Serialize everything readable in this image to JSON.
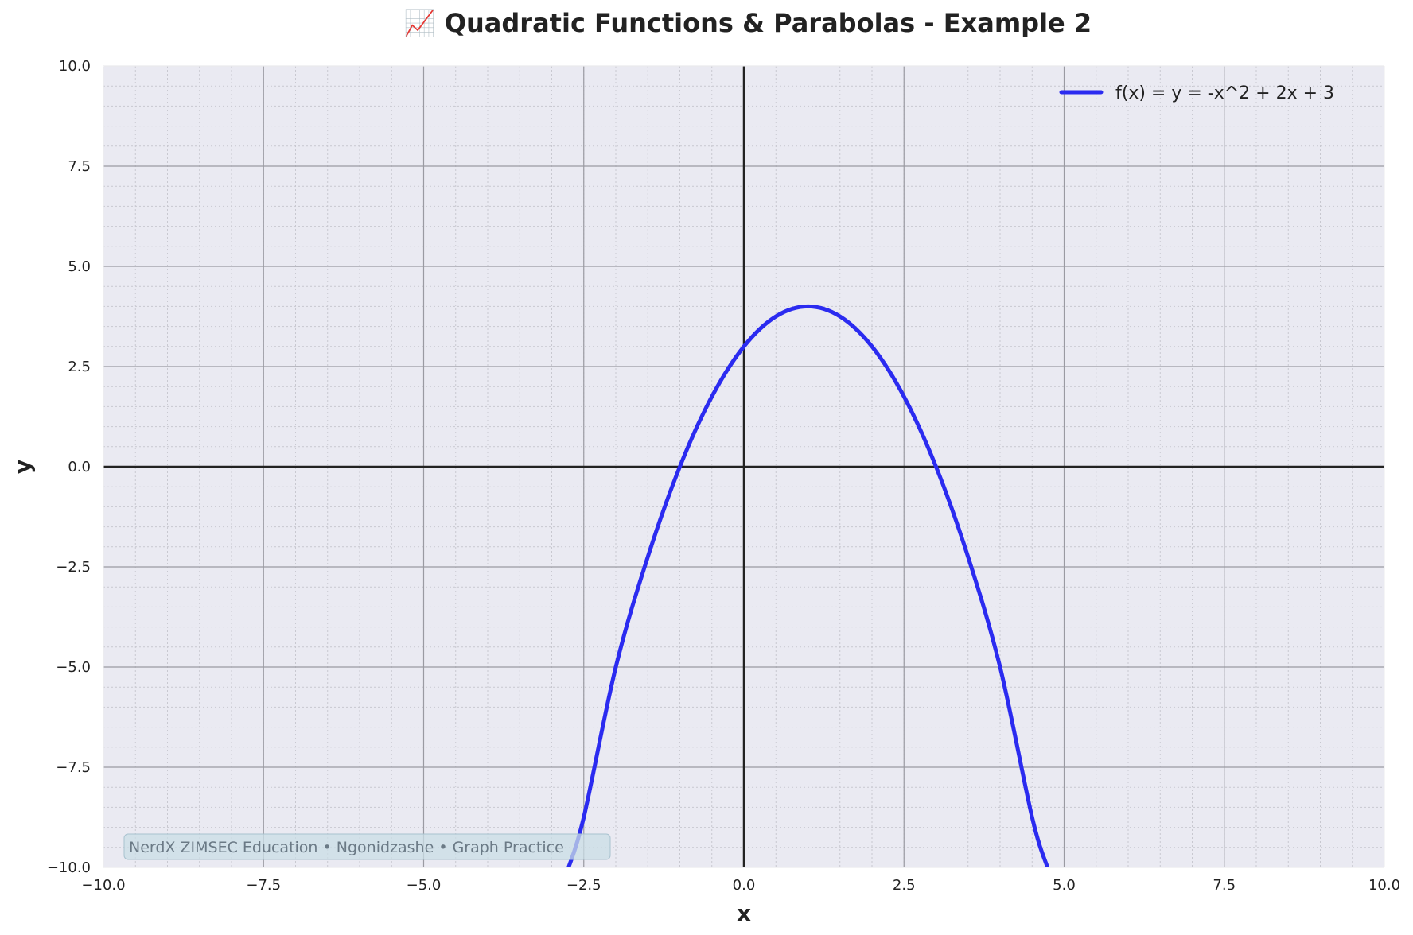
{
  "chart_data": {
    "type": "line",
    "title": "📈 Quadratic Functions & Parabolas - Example 2",
    "xlabel": "x",
    "ylabel": "y",
    "xlim": [
      -10,
      10
    ],
    "ylim": [
      -10,
      10
    ],
    "x_ticks": [
      "−10.0",
      "−7.5",
      "−5.0",
      "−2.5",
      "0.0",
      "2.5",
      "5.0",
      "7.5",
      "10.0"
    ],
    "y_ticks": [
      "10.0",
      "7.5",
      "5.0",
      "2.5",
      "0.0",
      "−2.5",
      "−5.0",
      "−7.5",
      "−10.0"
    ],
    "grid": true,
    "legend_position": "top-right",
    "series": [
      {
        "name": "f(x) = y = -x^2 + 2x + 3",
        "color": "#2b2bf0",
        "expression": "-x^2 + 2x + 3",
        "x": [
          -2.75,
          -2.5,
          -2,
          -1.5,
          -1,
          -0.5,
          0,
          0.5,
          1,
          1.5,
          2,
          2.5,
          3,
          3.5,
          4,
          4.5,
          4.74
        ],
        "y": [
          -10.06,
          -8.75,
          -5,
          -2.25,
          0,
          1.75,
          3,
          3.75,
          4,
          3.75,
          3,
          1.75,
          0,
          -2.25,
          -5,
          -8.75,
          -10.0
        ]
      }
    ],
    "annotation": "NerdX ZIMSEC Education • Ngonidzashe • Graph Practice",
    "colors": {
      "plot_background": "#eaeaf2",
      "major_grid": "#9a9aa2",
      "minor_grid": "#c8c8d0",
      "zero_axes": "#222222",
      "curve": "#2b2bf0"
    }
  }
}
